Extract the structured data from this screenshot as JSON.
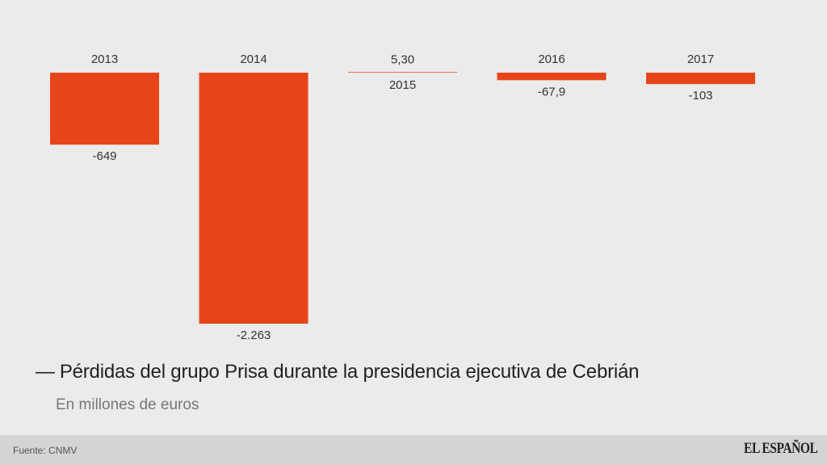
{
  "chart_data": {
    "type": "bar",
    "title": "Pérdidas del grupo Prisa durante la presidencia ejecutiva de Cebrián",
    "subtitle": "En millones de euros",
    "categories": [
      "2013",
      "2014",
      "2015",
      "2016",
      "2017"
    ],
    "values": [
      -649,
      -2263,
      5.3,
      -67.9,
      -103
    ],
    "value_labels": [
      "-649",
      "-2.263",
      "5,30",
      "-67,9",
      "-103"
    ],
    "bar_color": "#e8441a",
    "grid": false,
    "legend": "none"
  },
  "footer": {
    "source": "Fuente: CNMV",
    "logo": "EL ESPAÑOL"
  }
}
